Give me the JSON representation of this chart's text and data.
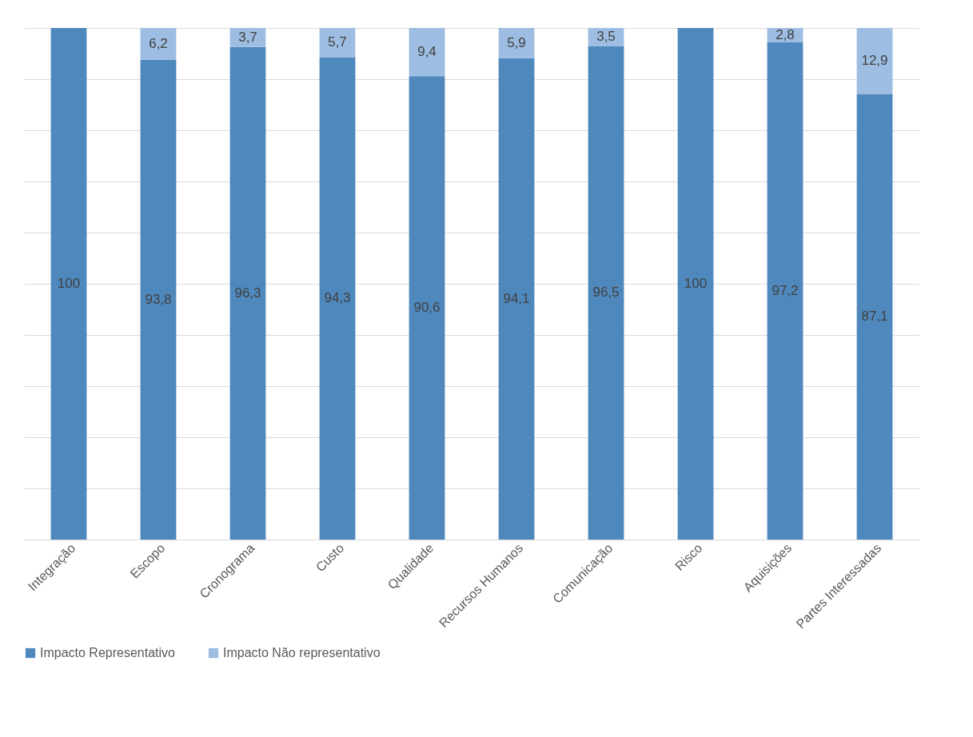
{
  "chart_data": {
    "type": "bar",
    "stacked": true,
    "categories": [
      "Integração",
      "Escopo",
      "Cronograma",
      "Custo",
      "Qualidade",
      "Recursos Humanos",
      "Comunicação",
      "Risco",
      "Aquisições",
      "Partes Interessadas"
    ],
    "series": [
      {
        "name": "Impacto Representativo",
        "color": "#4f88bd",
        "values": [
          100,
          93.8,
          96.3,
          94.3,
          90.6,
          94.1,
          96.5,
          100,
          97.2,
          87.1
        ],
        "value_labels": [
          "100",
          "93,8",
          "96,3",
          "94,3",
          "90,6",
          "94,1",
          "96,5",
          "100",
          "97,2",
          "87,1"
        ]
      },
      {
        "name": "Impacto Não representativo",
        "color": "#9dbde2",
        "values": [
          0,
          6.2,
          3.7,
          5.7,
          9.4,
          5.9,
          3.5,
          0,
          2.8,
          12.9
        ],
        "value_labels": [
          null,
          "6,2",
          "3,7",
          "5,7",
          "9,4",
          "5,9",
          "3,5",
          null,
          "2,8",
          "12,9"
        ]
      }
    ],
    "ylim": [
      0,
      100
    ],
    "yticks": [
      {
        "value": 0,
        "label": null
      },
      {
        "value": 10,
        "label": null
      },
      {
        "value": 20,
        "label": null
      },
      {
        "value": 30,
        "label": null
      },
      {
        "value": 40,
        "label": null
      },
      {
        "value": 50,
        "label": null
      },
      {
        "value": 60,
        "label": null
      },
      {
        "value": 70,
        "label": null
      },
      {
        "value": 80,
        "label": null
      },
      {
        "value": 90,
        "label": null
      },
      {
        "value": 100,
        "label": null
      }
    ],
    "tick_labels": "x",
    "grid": "y",
    "legend": "bottom"
  }
}
